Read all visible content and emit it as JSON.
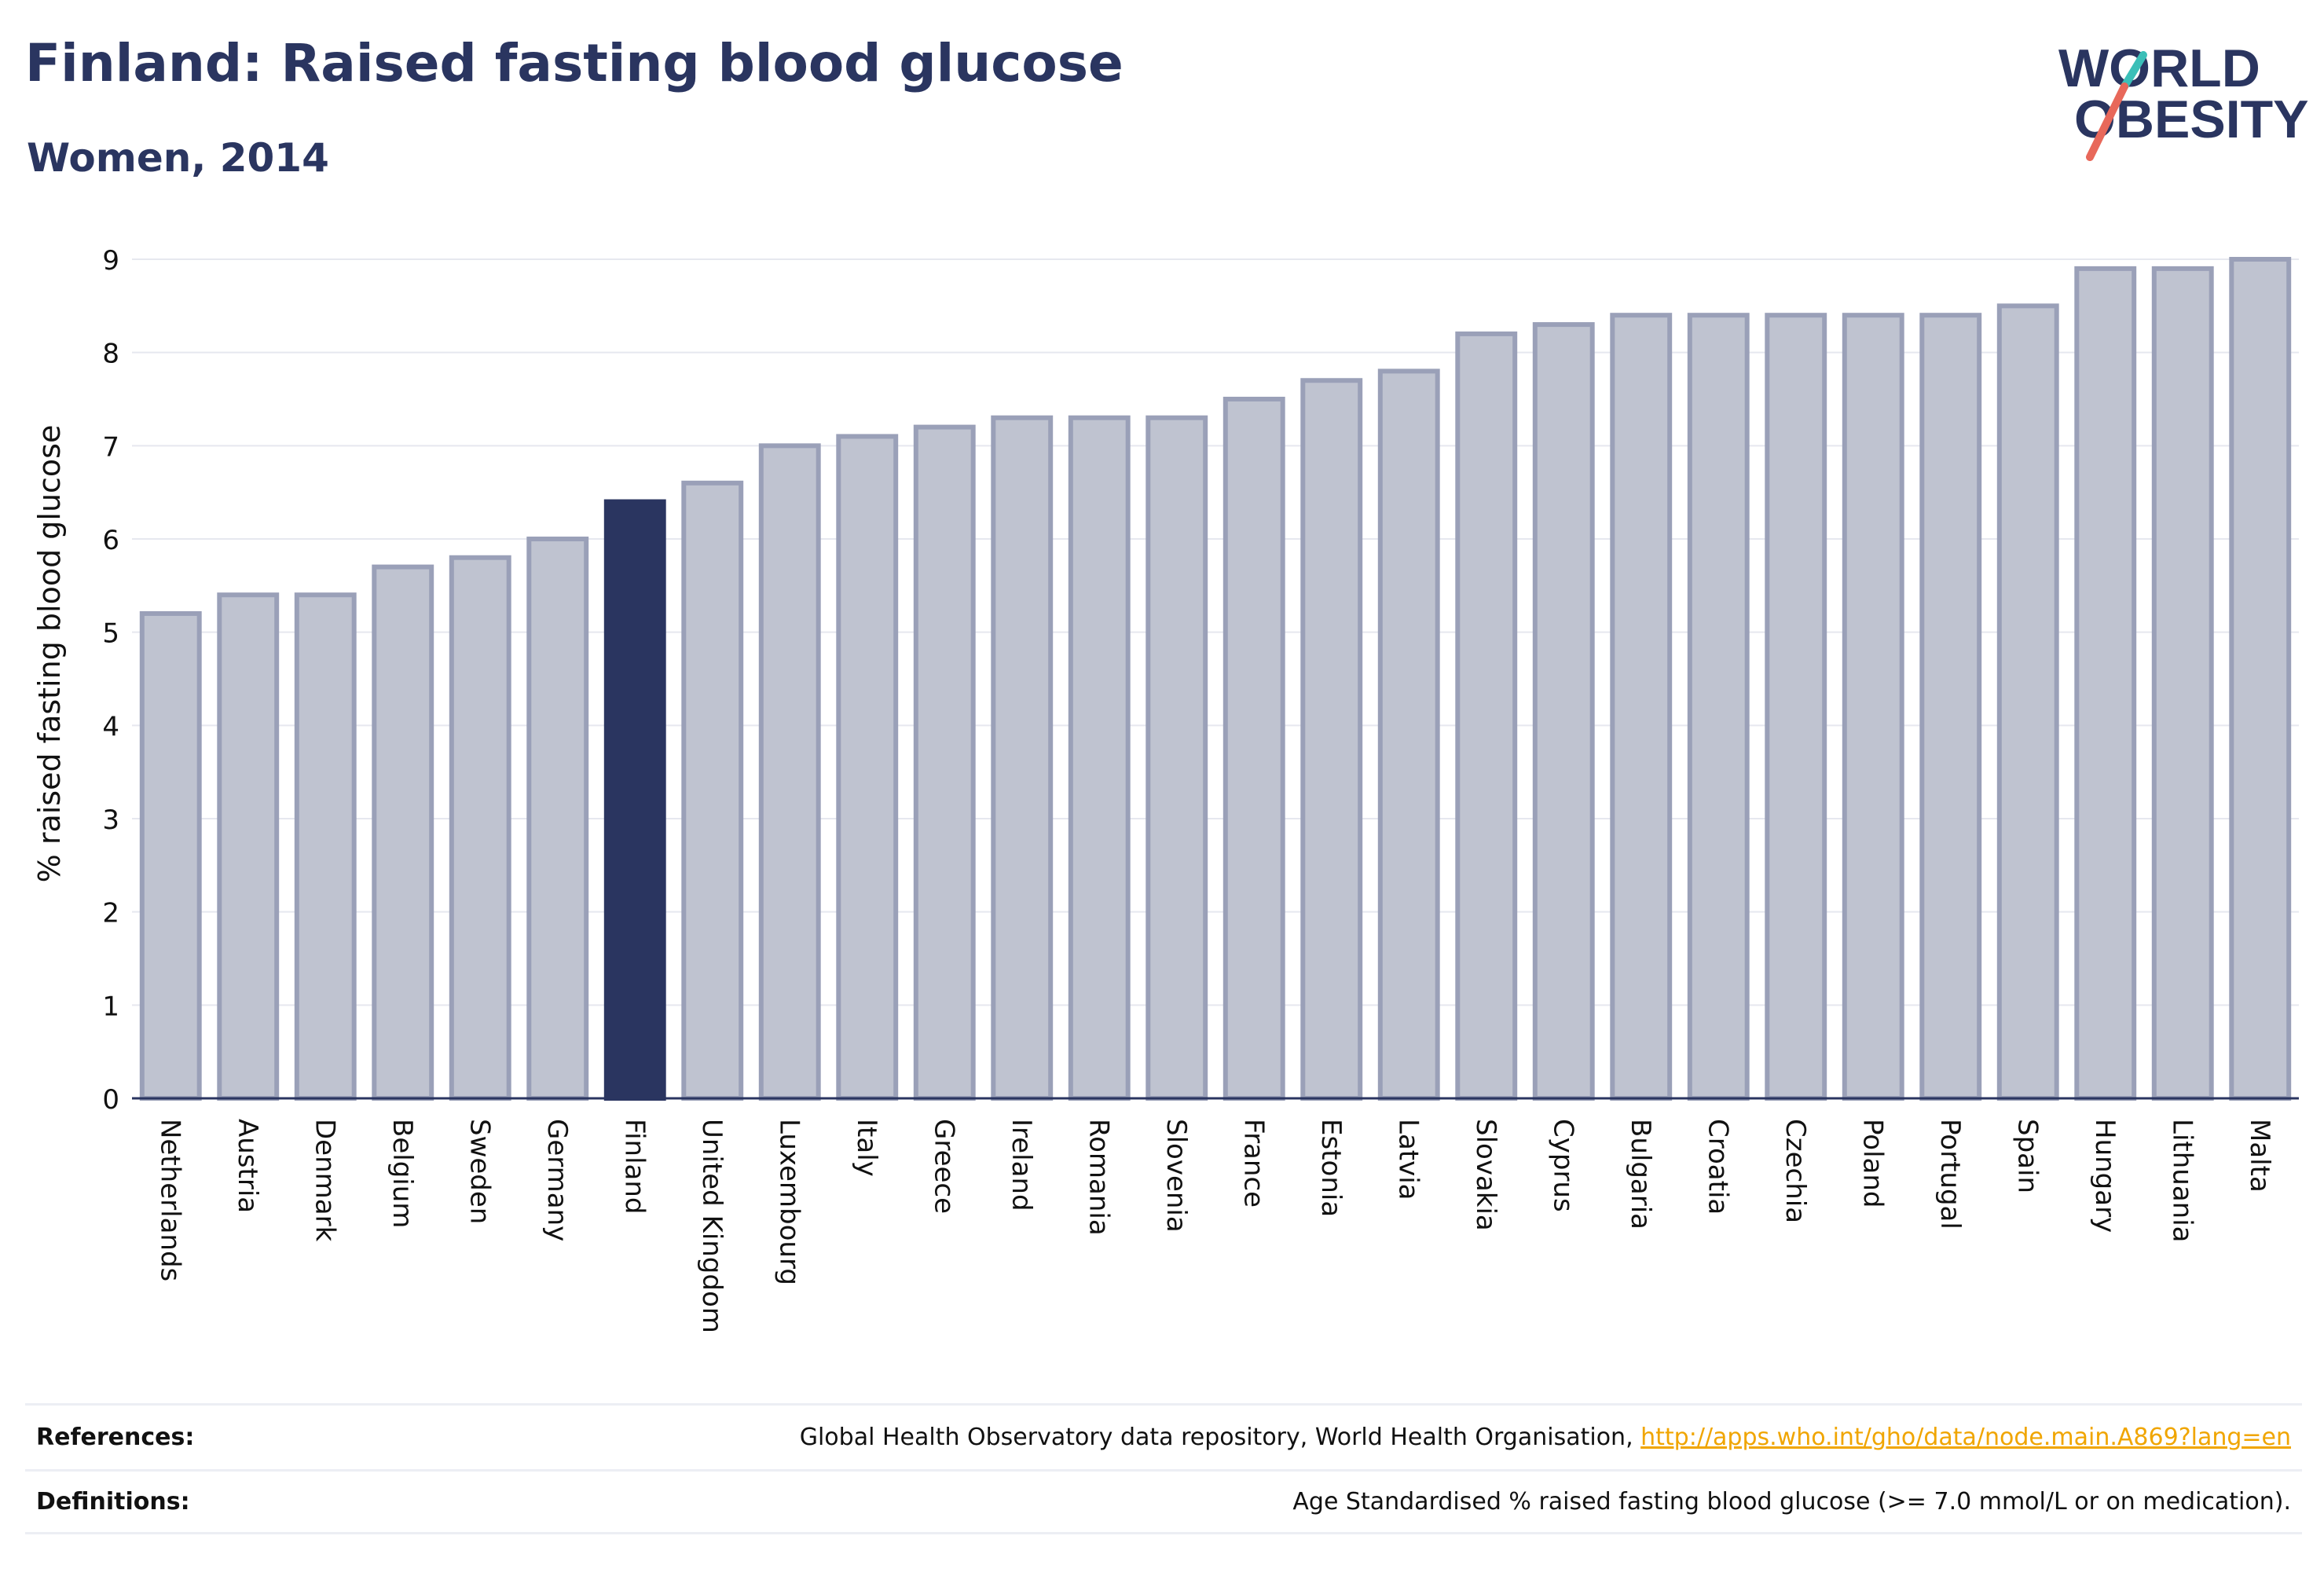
{
  "header": {
    "title": "Finland: Raised fasting blood glucose",
    "subtitle": "Women, 2014"
  },
  "logo": {
    "line1": "WORLD",
    "line2": "OBESITY"
  },
  "colors": {
    "highlight": "#2a3560",
    "bar_fill": "#bfc3d0",
    "bar_stroke": "#9aa0b8",
    "text": "#2a3560",
    "link": "#f0a500",
    "logo_teal": "#3bbfb8",
    "logo_coral": "#e8685a"
  },
  "chart_data": {
    "type": "bar",
    "ylabel": "% raised fasting blood glucose",
    "ylim": [
      0,
      9
    ],
    "yticks": [
      0,
      1,
      2,
      3,
      4,
      5,
      6,
      7,
      8,
      9
    ],
    "grid": true,
    "highlight": "Finland",
    "categories": [
      "Netherlands",
      "Austria",
      "Denmark",
      "Belgium",
      "Sweden",
      "Germany",
      "Finland",
      "United Kingdom",
      "Luxembourg",
      "Italy",
      "Greece",
      "Ireland",
      "Romania",
      "Slovenia",
      "France",
      "Estonia",
      "Latvia",
      "Slovakia",
      "Cyprus",
      "Bulgaria",
      "Croatia",
      "Czechia",
      "Poland",
      "Portugal",
      "Spain",
      "Hungary",
      "Lithuania",
      "Malta"
    ],
    "values": [
      5.2,
      5.4,
      5.4,
      5.7,
      5.8,
      6.0,
      6.4,
      6.6,
      7.0,
      7.1,
      7.2,
      7.3,
      7.3,
      7.3,
      7.5,
      7.7,
      7.8,
      8.2,
      8.3,
      8.4,
      8.4,
      8.4,
      8.4,
      8.4,
      8.5,
      8.9,
      8.9,
      9.0
    ]
  },
  "footer": {
    "references_label": "References:",
    "references_text": "Global Health Observatory data repository, World Health Organisation, ",
    "references_link": "http://apps.who.int/gho/data/node.main.A869?lang=en",
    "definitions_label": "Definitions:",
    "definitions_text": "Age Standardised % raised fasting blood glucose (>= 7.0 mmol/L or on medication)."
  }
}
